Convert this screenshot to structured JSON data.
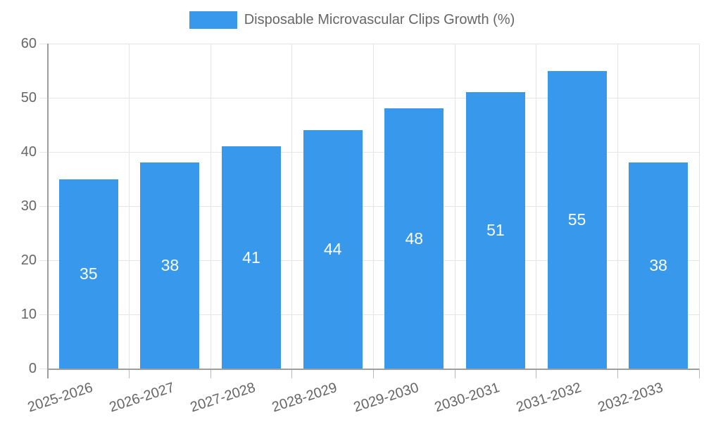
{
  "legend": {
    "label": "Disposable Microvascular Clips Growth (%)",
    "position": "top"
  },
  "chart_data": {
    "type": "bar",
    "title": "Disposable Microvascular Clips Growth (%)",
    "series_name": "Disposable Microvascular Clips Growth (%)",
    "categories": [
      "2025-2026",
      "2026-2027",
      "2027-2028",
      "2028-2029",
      "2029-2030",
      "2030-2031",
      "2031-2032",
      "2032-2033"
    ],
    "values": [
      35,
      38,
      41,
      44,
      48,
      51,
      55,
      38
    ],
    "xlabel": "",
    "ylabel": "",
    "ylim": [
      0,
      60
    ],
    "yticks": [
      0,
      10,
      20,
      30,
      40,
      50,
      60
    ],
    "grid": true,
    "legend_position": "top",
    "bar_color": "#3899EC",
    "value_label_color": "#FFFFFF",
    "tick_text_color": "#666666",
    "grid_color": "#E5E5E5",
    "axis_color": "#9E9E9E",
    "tick_mark_color": "#B9B9B9"
  }
}
